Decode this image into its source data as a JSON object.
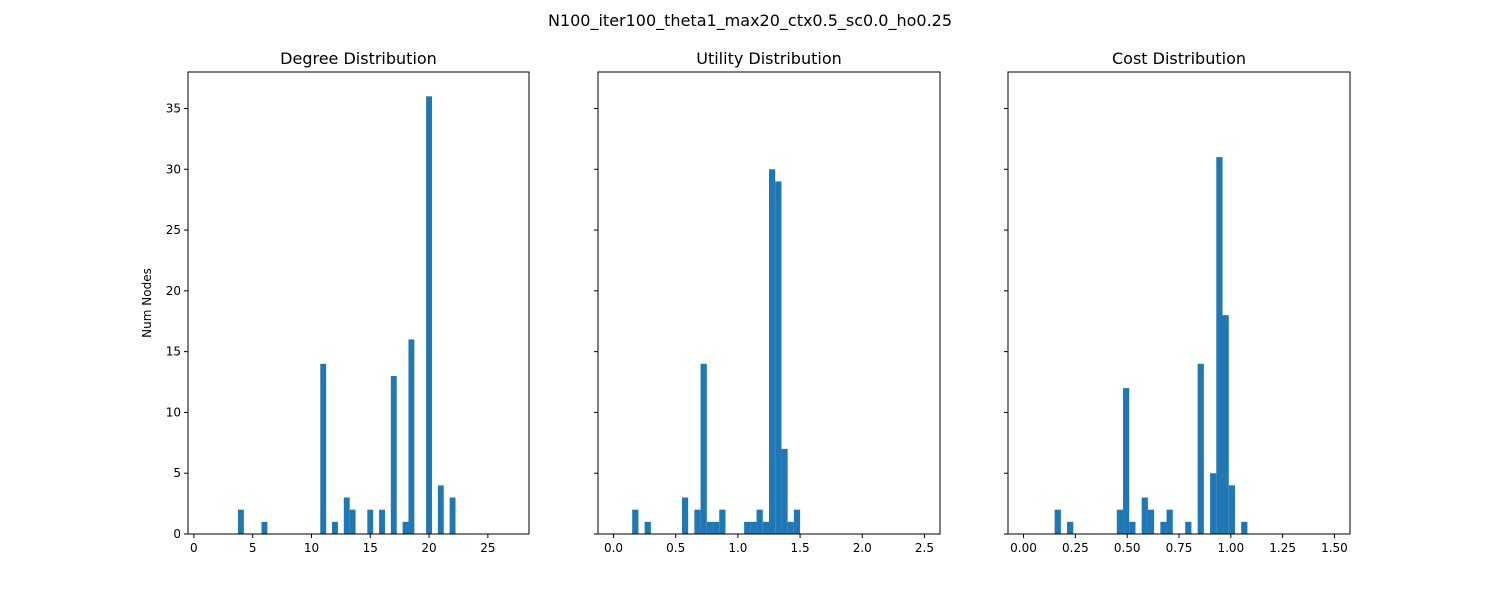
{
  "figure": {
    "suptitle": "N100_iter100_theta1_max20_ctx0.5_sc0.0_ho0.25",
    "ylabel": "Num Nodes",
    "bar_color": "#1f77b4"
  },
  "chart_data": [
    {
      "type": "bar",
      "title": "Degree Distribution",
      "xlabel": "",
      "ylabel": "Num Nodes",
      "xlim": [
        -0.5,
        28.5
      ],
      "ylim": [
        0,
        38
      ],
      "xticks": [
        0,
        5,
        10,
        15,
        20,
        25
      ],
      "xtick_labels": [
        "0",
        "5",
        "10",
        "15",
        "20",
        "25"
      ],
      "yticks": [
        0,
        5,
        10,
        15,
        20,
        25,
        30,
        35
      ],
      "ytick_labels": [
        "0",
        "5",
        "10",
        "15",
        "20",
        "25",
        "30",
        "35"
      ],
      "bar_width": 0.5,
      "bars": [
        {
          "x": 4,
          "value": 2
        },
        {
          "x": 6,
          "value": 1
        },
        {
          "x": 11,
          "value": 14
        },
        {
          "x": 12,
          "value": 1
        },
        {
          "x": 13,
          "value": 3
        },
        {
          "x": 13.5,
          "value": 2
        },
        {
          "x": 15,
          "value": 2
        },
        {
          "x": 16,
          "value": 2
        },
        {
          "x": 17,
          "value": 13
        },
        {
          "x": 18,
          "value": 1
        },
        {
          "x": 18.5,
          "value": 16
        },
        {
          "x": 20,
          "value": 36
        },
        {
          "x": 21,
          "value": 4
        },
        {
          "x": 22,
          "value": 3
        }
      ]
    },
    {
      "type": "bar",
      "title": "Utility Distribution",
      "xlabel": "",
      "xlim": [
        -0.125,
        2.625
      ],
      "ylim": [
        0,
        38
      ],
      "xticks": [
        0.0,
        0.5,
        1.0,
        1.5,
        2.0,
        2.5
      ],
      "xtick_labels": [
        "0.0",
        "0.5",
        "1.0",
        "1.5",
        "2.0",
        "2.5"
      ],
      "bar_width": 0.05,
      "bars": [
        {
          "x": 0.175,
          "value": 2
        },
        {
          "x": 0.275,
          "value": 1
        },
        {
          "x": 0.575,
          "value": 3
        },
        {
          "x": 0.675,
          "value": 2
        },
        {
          "x": 0.725,
          "value": 14
        },
        {
          "x": 0.775,
          "value": 1
        },
        {
          "x": 0.825,
          "value": 1
        },
        {
          "x": 0.875,
          "value": 2
        },
        {
          "x": 1.075,
          "value": 1
        },
        {
          "x": 1.125,
          "value": 1
        },
        {
          "x": 1.175,
          "value": 2
        },
        {
          "x": 1.225,
          "value": 1
        },
        {
          "x": 1.275,
          "value": 30
        },
        {
          "x": 1.325,
          "value": 29
        },
        {
          "x": 1.375,
          "value": 7
        },
        {
          "x": 1.425,
          "value": 1
        },
        {
          "x": 1.475,
          "value": 2
        }
      ]
    },
    {
      "type": "bar",
      "title": "Cost Distribution",
      "xlabel": "",
      "xlim": [
        -0.075,
        1.575
      ],
      "ylim": [
        0,
        38
      ],
      "xticks": [
        0.0,
        0.25,
        0.5,
        0.75,
        1.0,
        1.25,
        1.5
      ],
      "xtick_labels": [
        "0.00",
        "0.25",
        "0.50",
        "0.75",
        "1.00",
        "1.25",
        "1.50"
      ],
      "bar_width": 0.03,
      "bars": [
        {
          "x": 0.165,
          "value": 2
        },
        {
          "x": 0.225,
          "value": 1
        },
        {
          "x": 0.465,
          "value": 2
        },
        {
          "x": 0.495,
          "value": 12
        },
        {
          "x": 0.525,
          "value": 1
        },
        {
          "x": 0.585,
          "value": 3
        },
        {
          "x": 0.615,
          "value": 2
        },
        {
          "x": 0.675,
          "value": 1
        },
        {
          "x": 0.705,
          "value": 2
        },
        {
          "x": 0.795,
          "value": 1
        },
        {
          "x": 0.855,
          "value": 14
        },
        {
          "x": 0.915,
          "value": 5
        },
        {
          "x": 0.945,
          "value": 31
        },
        {
          "x": 0.975,
          "value": 18
        },
        {
          "x": 1.005,
          "value": 4
        },
        {
          "x": 1.065,
          "value": 1
        }
      ]
    }
  ]
}
